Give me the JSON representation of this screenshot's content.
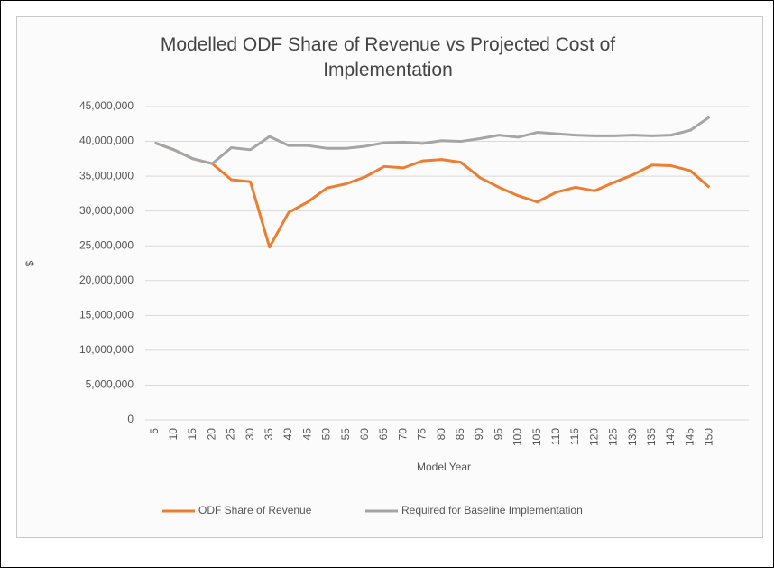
{
  "chart_data": {
    "type": "line",
    "title": "Modelled ODF Share of Revenue vs Projected Cost of Implementation",
    "xlabel": "Model Year",
    "ylabel": "$",
    "categories": [
      5,
      10,
      15,
      20,
      25,
      30,
      35,
      40,
      45,
      50,
      55,
      60,
      65,
      70,
      75,
      80,
      85,
      90,
      95,
      100,
      105,
      110,
      115,
      120,
      125,
      130,
      135,
      140,
      145,
      150
    ],
    "series": [
      {
        "name": "ODF Share of Revenue",
        "color": "#ed7d31",
        "values": [
          39800000,
          38800000,
          37500000,
          36800000,
          34500000,
          34200000,
          24800000,
          29800000,
          31300000,
          33300000,
          33900000,
          34900000,
          36400000,
          36200000,
          37200000,
          37400000,
          37000000,
          34800000,
          33400000,
          32200000,
          31300000,
          32700000,
          33400000,
          32900000,
          34100000,
          35200000,
          36600000,
          36500000,
          35800000,
          33400000
        ]
      },
      {
        "name": "Required for Baseline Implementation",
        "color": "#a5a5a5",
        "values": [
          39800000,
          38800000,
          37500000,
          36800000,
          39100000,
          38800000,
          40700000,
          39400000,
          39400000,
          39000000,
          39000000,
          39300000,
          39800000,
          39900000,
          39700000,
          40100000,
          40000000,
          40400000,
          40900000,
          40600000,
          41300000,
          41100000,
          40900000,
          40800000,
          40800000,
          40900000,
          40800000,
          40900000,
          41600000,
          43500000
        ]
      }
    ],
    "ylim": [
      0,
      45000000
    ],
    "yticks": [
      0,
      {
        "value": 5000000,
        "label": "5,000,000"
      },
      {
        "value": 10000000,
        "label": "10,000,000"
      },
      {
        "value": 15000000,
        "label": "15,000,000"
      },
      {
        "value": 20000000,
        "label": "20,000,000"
      },
      {
        "value": 25000000,
        "label": "25,000,000"
      },
      {
        "value": 30000000,
        "label": "30,000,000"
      },
      {
        "value": 35000000,
        "label": "35,000,000"
      },
      {
        "value": 40000000,
        "label": "40,000,000"
      },
      {
        "value": 45000000,
        "label": "45,000,000"
      }
    ],
    "grid": true,
    "legend": "bottom"
  }
}
